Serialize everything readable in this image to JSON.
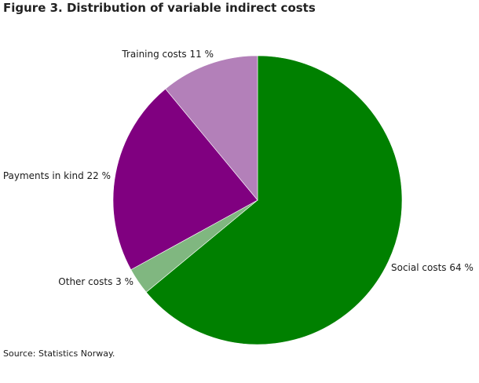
{
  "chart_data": {
    "type": "pie",
    "title": "Figure 3. Distribution of variable indirect costs",
    "source": "Source: Statistics Norway.",
    "start_angle_deg": 0,
    "direction": "clockwise",
    "slices": [
      {
        "name": "Social costs",
        "value": 64,
        "label": "Social costs 64 %",
        "color": "#008000"
      },
      {
        "name": "Other costs",
        "value": 3,
        "label": "Other costs 3 %",
        "color": "#80b780"
      },
      {
        "name": "Payments in kind",
        "value": 22,
        "label": "Payments in kind 22 %",
        "color": "#800080"
      },
      {
        "name": "Training costs",
        "value": 11,
        "label": "Training costs 11 %",
        "color": "#b380b9"
      }
    ]
  }
}
